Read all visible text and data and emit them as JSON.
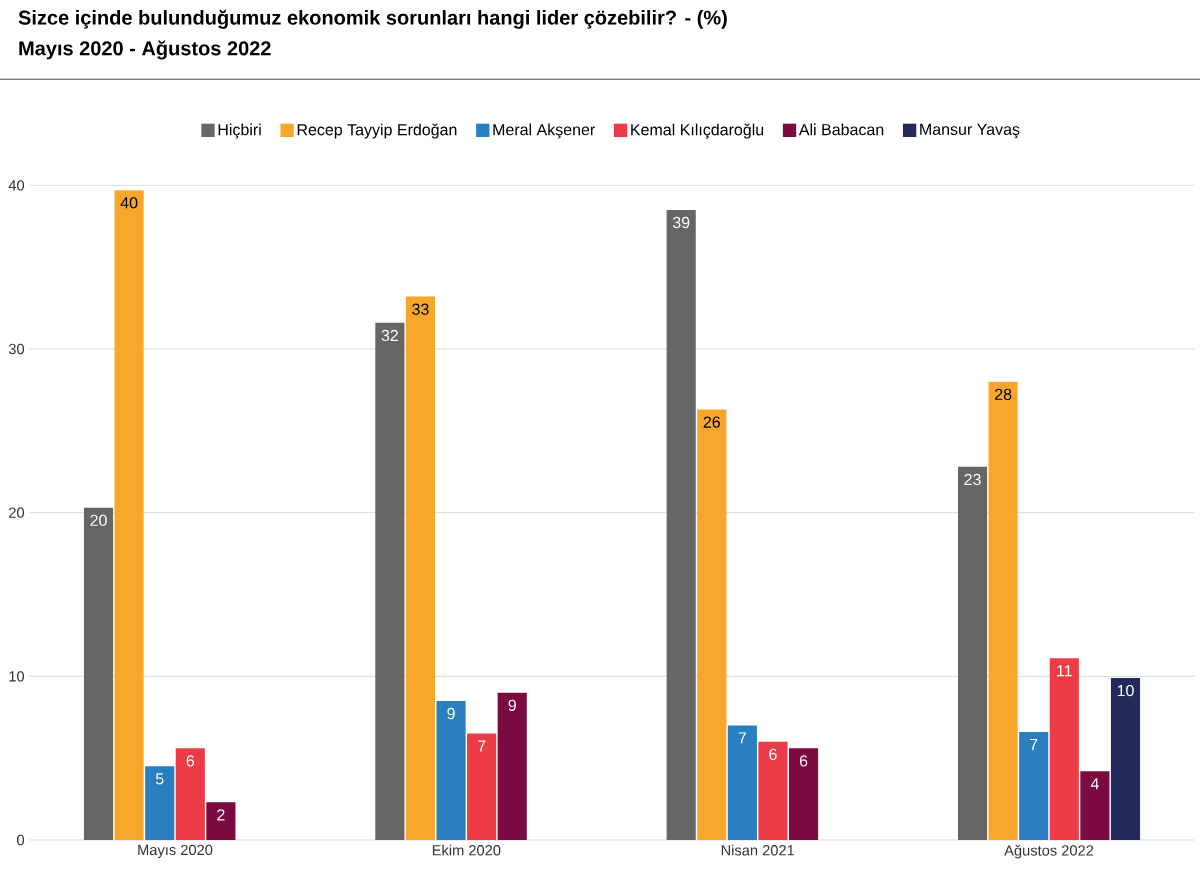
{
  "chart_data": {
    "type": "bar",
    "title": "Sizce içinde bulunduğumuz ekonomik sorunları hangi lider çözebilir? - (%)",
    "subtitle": "Mayıs 2020 - Ağustos 2022",
    "categories": [
      "Mayıs 2020",
      "Ekim 2020",
      "Nisan 2021",
      "Ağustos 2022"
    ],
    "series": [
      {
        "name": "Hiçbiri",
        "color": "#666666",
        "values": [
          20.3,
          31.6,
          38.5,
          22.8
        ],
        "value_labels": [
          "20",
          "32",
          "39",
          "23"
        ]
      },
      {
        "name": "Recep Tayyip Erdoğan",
        "color": "#f9a72b",
        "values": [
          39.7,
          33.2,
          26.3,
          28.0
        ],
        "value_labels": [
          "40",
          "33",
          "26",
          "28"
        ]
      },
      {
        "name": "Meral Akşener",
        "color": "#2a7fc1",
        "values": [
          4.5,
          8.5,
          7.0,
          6.6
        ],
        "value_labels": [
          "5",
          "9",
          "7",
          "7"
        ]
      },
      {
        "name": "Kemal Kılıçdaroğlu",
        "color": "#ec3c48",
        "values": [
          5.6,
          6.5,
          6.0,
          11.1
        ],
        "value_labels": [
          "6",
          "7",
          "6",
          "11"
        ]
      },
      {
        "name": "Ali Babacan",
        "color": "#7a0a3f",
        "values": [
          2.3,
          9.0,
          5.6,
          4.2
        ],
        "value_labels": [
          "2",
          "9",
          "6",
          "4"
        ]
      },
      {
        "name": "Mansur Yavaş",
        "color": "#252a5c",
        "values": [
          null,
          null,
          null,
          9.9
        ],
        "value_labels": [
          null,
          null,
          null,
          "10"
        ]
      }
    ],
    "ylim": [
      0,
      40
    ],
    "yticks": [
      0,
      10,
      20,
      30,
      40
    ],
    "grid": "y",
    "legend": "top"
  }
}
